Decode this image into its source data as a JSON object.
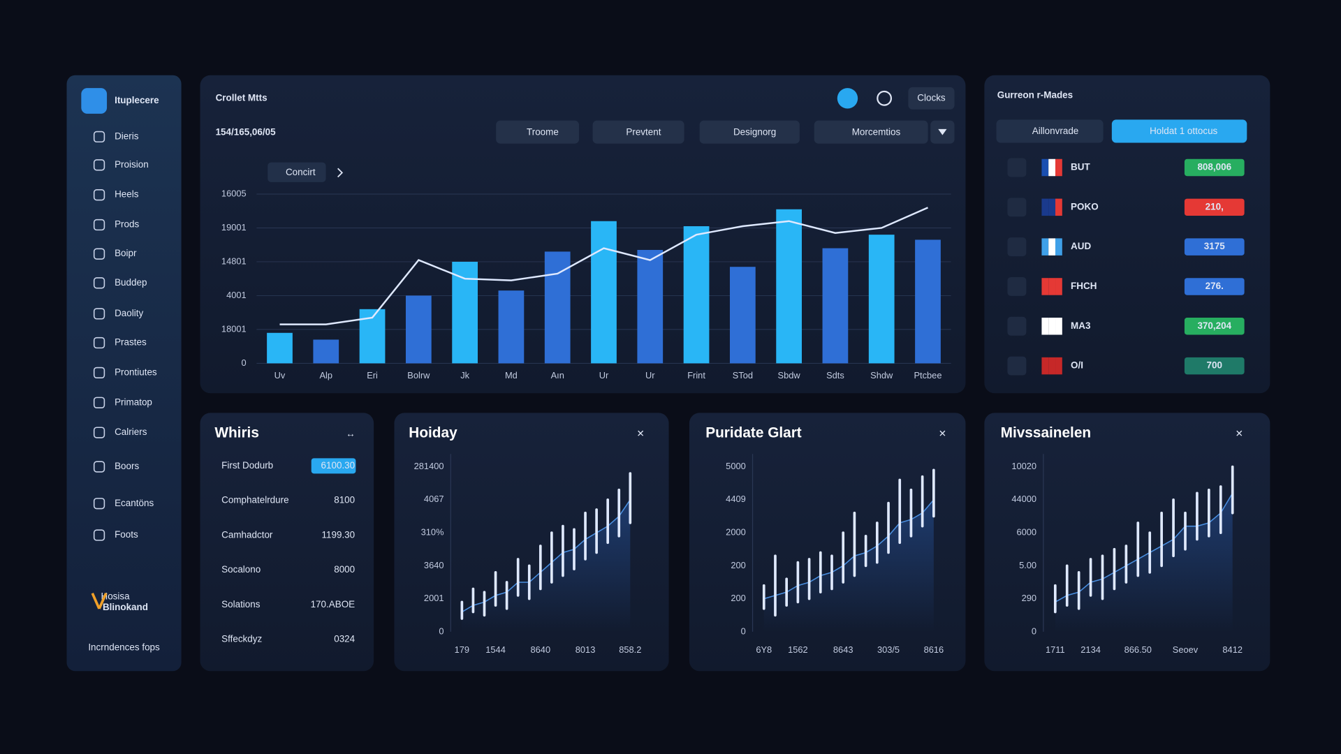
{
  "sidebar": {
    "brand": "Ituplecere",
    "items": [
      "Dieris",
      "Proision",
      "Heels",
      "Prods",
      "Boipr",
      "Buddep",
      "Daolity",
      "Prastes",
      "Prontiutes",
      "Primatop",
      "Calriers",
      "Boors",
      "Ecantöns",
      "Foots"
    ],
    "footer_tag": "Hosisa",
    "footer_brand": "Blinokand",
    "footer": "Incrndences fops"
  },
  "main": {
    "value": "154/165,06/05",
    "button": "Clocks",
    "tabs": [
      "Troome",
      "Prevtent",
      "Designorg",
      "Morcemtios"
    ],
    "filter": "Concirt"
  },
  "currency": {
    "title": "Gurreon r-Mades",
    "tabs": [
      "Aillonvrade",
      "Holdat 1 ottocus"
    ],
    "rows": [
      {
        "code": "BUT",
        "value": "808,006",
        "color": "#27ae60"
      },
      {
        "code": "POKO",
        "value": "210,",
        "color": "#e53935"
      },
      {
        "code": "AUD",
        "value": "3175",
        "color": "#2f6fd6"
      },
      {
        "code": "FHCH",
        "value": "276.",
        "color": "#2f6fd6"
      },
      {
        "code": "MA3",
        "value": "370,204",
        "color": "#27ae60"
      },
      {
        "code": "O/I",
        "value": "700",
        "color": "#1f7a68"
      }
    ]
  },
  "list": {
    "title": "Whiris",
    "rows": [
      [
        "First Dodurb",
        "6100.30"
      ],
      [
        "Comphatelrdure",
        "8100"
      ],
      [
        "Camhadctor",
        "1199.30"
      ],
      [
        "Socalono",
        "8000"
      ],
      [
        "Solations",
        "170.ABOE"
      ],
      [
        "Sffeckdyz",
        "0324"
      ]
    ]
  },
  "chart_data": [
    {
      "type": "bar",
      "title": "Crollet Mtts",
      "categories": [
        "Uv",
        "Alp",
        "Eri",
        "Bolrw",
        "Jk",
        "Md",
        "Aın",
        "Ur",
        "Ur",
        "Frint",
        "STod",
        "Sbdw",
        "Sdts",
        "Shdw",
        "Ptcbee"
      ],
      "values": [
        18,
        14,
        32,
        40,
        60,
        43,
        66,
        84,
        67,
        81,
        57,
        91,
        68,
        76,
        73
      ],
      "colors": [
        "#29b6f6",
        "#2f6fd6",
        "#29b6f6",
        "#2f6fd6",
        "#29b6f6",
        "#2f6fd6",
        "#2f6fd6",
        "#29b6f6",
        "#2f6fd6",
        "#29b6f6",
        "#2f6fd6",
        "#29b6f6",
        "#2f6fd6",
        "#29b6f6",
        "#2f6fd6"
      ],
      "line_values": [
        23,
        23,
        27,
        61,
        50,
        49,
        53,
        68,
        61,
        76,
        81,
        84,
        77,
        80,
        92
      ],
      "line_color": "#dfe9ff",
      "ylim": [
        0,
        100
      ],
      "yticks": [
        0,
        {
          "value": 20,
          "label": "18001"
        },
        {
          "value": 40,
          "label": "4001"
        },
        {
          "value": 60,
          "label": "14801"
        },
        {
          "value": 80,
          "label": "19001"
        },
        {
          "value": 100,
          "label": "16005"
        }
      ],
      "grid": true
    },
    {
      "type": "range",
      "title": "Hoiday",
      "x": [
        1,
        2,
        3,
        4,
        5,
        6,
        7,
        8,
        9,
        10,
        11,
        12,
        13,
        14,
        15,
        16
      ],
      "lows": [
        8,
        12,
        10,
        16,
        14,
        22,
        20,
        26,
        30,
        34,
        38,
        44,
        48,
        54,
        58,
        66
      ],
      "highs": [
        18,
        26,
        24,
        36,
        30,
        44,
        40,
        52,
        60,
        64,
        62,
        72,
        74,
        80,
        86,
        96
      ],
      "line_values": [
        12,
        16,
        18,
        22,
        24,
        30,
        30,
        36,
        42,
        48,
        50,
        56,
        60,
        64,
        70,
        80
      ],
      "color": "#dfe9ff",
      "line_color": "#4a8fe0",
      "xlim": [
        0,
        17
      ],
      "xticks": [
        {
          "value": 1,
          "label": "179"
        },
        {
          "value": 4,
          "label": "1544"
        },
        {
          "value": 8,
          "label": "8640"
        },
        {
          "value": 12,
          "label": "8013"
        },
        {
          "value": 16,
          "label": "858.2"
        }
      ],
      "ylim": [
        0,
        100
      ],
      "yticks": [
        0,
        {
          "value": 20,
          "label": "2001"
        },
        {
          "value": 40,
          "label": "3640"
        },
        {
          "value": 60,
          "label": "310%"
        },
        {
          "value": 80,
          "label": "4067"
        },
        {
          "value": 100,
          "label": "281400"
        }
      ]
    },
    {
      "type": "range",
      "title": "Puridate Glart",
      "x": [
        1,
        2,
        3,
        4,
        5,
        6,
        7,
        8,
        9,
        10,
        11,
        12,
        13,
        14,
        15,
        16
      ],
      "lows": [
        14,
        10,
        16,
        18,
        20,
        24,
        26,
        30,
        34,
        40,
        42,
        48,
        54,
        58,
        64,
        70
      ],
      "highs": [
        28,
        46,
        32,
        42,
        44,
        48,
        46,
        60,
        72,
        58,
        66,
        78,
        92,
        86,
        94,
        98
      ],
      "line_values": [
        20,
        22,
        24,
        28,
        30,
        34,
        36,
        40,
        46,
        48,
        52,
        58,
        66,
        68,
        72,
        80
      ],
      "color": "#dfe9ff",
      "line_color": "#4a8fe0",
      "xlim": [
        0,
        17
      ],
      "xticks": [
        {
          "value": 1,
          "label": "6Y8"
        },
        {
          "value": 4,
          "label": "1562"
        },
        {
          "value": 8,
          "label": "8643"
        },
        {
          "value": 12,
          "label": "303/5"
        },
        {
          "value": 16,
          "label": "8616"
        }
      ],
      "ylim": [
        0,
        100
      ],
      "yticks": [
        0,
        {
          "value": 20,
          "label": "200"
        },
        {
          "value": 40,
          "label": "200"
        },
        {
          "value": 60,
          "label": "2000"
        },
        {
          "value": 80,
          "label": "4409"
        },
        {
          "value": 100,
          "label": "5000"
        }
      ]
    },
    {
      "type": "range",
      "title": "Mivssainelen",
      "x": [
        1,
        2,
        3,
        4,
        5,
        6,
        7,
        8,
        9,
        10,
        11,
        12,
        13,
        14,
        15,
        16
      ],
      "lows": [
        12,
        16,
        14,
        22,
        20,
        26,
        30,
        34,
        36,
        40,
        46,
        50,
        56,
        58,
        60,
        72
      ],
      "highs": [
        28,
        40,
        36,
        44,
        46,
        50,
        52,
        66,
        60,
        72,
        80,
        72,
        84,
        86,
        88,
        100
      ],
      "line_values": [
        18,
        22,
        24,
        30,
        32,
        36,
        40,
        44,
        48,
        52,
        56,
        64,
        64,
        66,
        72,
        84
      ],
      "color": "#dfe9ff",
      "line_color": "#4a8fe0",
      "xlim": [
        0,
        17
      ],
      "xticks": [
        {
          "value": 1,
          "label": "1711"
        },
        {
          "value": 4,
          "label": "2134"
        },
        {
          "value": 8,
          "label": "866.50"
        },
        {
          "value": 12,
          "label": "Seoev"
        },
        {
          "value": 16,
          "label": "8412"
        }
      ],
      "ylim": [
        0,
        100
      ],
      "yticks": [
        0,
        {
          "value": 20,
          "label": "290"
        },
        {
          "value": 40,
          "label": "5.00"
        },
        {
          "value": 60,
          "label": "6000"
        },
        {
          "value": 80,
          "label": "44000"
        },
        {
          "value": 100,
          "label": "10020"
        }
      ]
    }
  ]
}
